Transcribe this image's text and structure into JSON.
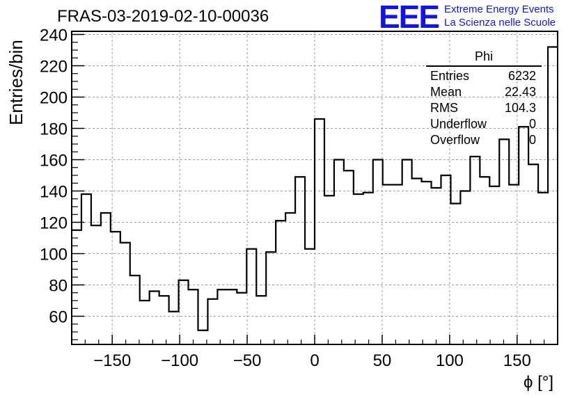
{
  "header": {
    "title": "FRAS-03-2019-02-10-00036",
    "logo": "EEE",
    "logo_line1": "Extreme Energy Events",
    "logo_line2": "La Scienza nelle Scuole"
  },
  "stats": {
    "name": "Phi",
    "rows": [
      {
        "label": "Entries",
        "value": "6232"
      },
      {
        "label": "Mean",
        "value": "22.43"
      },
      {
        "label": "RMS",
        "value": "104.3"
      },
      {
        "label": "Underflow",
        "value": "0"
      },
      {
        "label": "Overflow",
        "value": "0"
      }
    ]
  },
  "chart_data": {
    "type": "histogram",
    "title": "FRAS-03-2019-02-10-00036",
    "xlabel": "ϕ [°]",
    "ylabel": "Entries/bin",
    "xlim": [
      -180,
      180
    ],
    "ylim": [
      42,
      242
    ],
    "grid": true,
    "bin_width": 7.2,
    "bin_edges_start": -180,
    "xticks": [
      -150,
      -100,
      -50,
      0,
      50,
      100,
      150
    ],
    "yticks": [
      60,
      80,
      100,
      120,
      140,
      160,
      180,
      200,
      220,
      240
    ],
    "values": [
      115,
      138,
      118,
      126,
      114,
      107,
      86,
      70,
      76,
      73,
      63,
      83,
      77,
      51,
      71,
      77,
      77,
      75,
      103,
      73,
      101,
      121,
      126,
      149,
      103,
      186,
      137,
      160,
      153,
      138,
      139,
      160,
      144,
      144,
      160,
      148,
      146,
      142,
      150,
      132,
      140,
      162,
      149,
      143,
      173,
      144,
      181,
      157,
      139,
      232
    ]
  }
}
